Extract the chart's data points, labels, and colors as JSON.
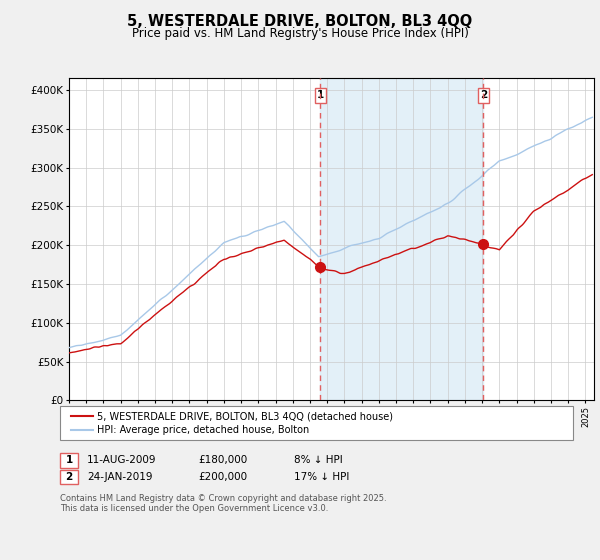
{
  "title": "5, WESTERDALE DRIVE, BOLTON, BL3 4QQ",
  "subtitle": "Price paid vs. HM Land Registry's House Price Index (HPI)",
  "ylabel_ticks": [
    "£0",
    "£50K",
    "£100K",
    "£150K",
    "£200K",
    "£250K",
    "£300K",
    "£350K",
    "£400K"
  ],
  "ytick_values": [
    0,
    50000,
    100000,
    150000,
    200000,
    250000,
    300000,
    350000,
    400000
  ],
  "ylim": [
    0,
    415000
  ],
  "xlim_start": 1995.0,
  "xlim_end": 2025.5,
  "hpi_color": "#a8c8e8",
  "hpi_fill_color": "#d8eaf6",
  "price_color": "#cc1111",
  "vline_color": "#e06060",
  "vline1_x": 2009.6,
  "vline2_x": 2019.07,
  "sale1_price": 180000,
  "sale2_price": 200000,
  "annotation1_label": "1",
  "annotation2_label": "2",
  "legend_line1": "5, WESTERDALE DRIVE, BOLTON, BL3 4QQ (detached house)",
  "legend_line2": "HPI: Average price, detached house, Bolton",
  "footnote": "Contains HM Land Registry data © Crown copyright and database right 2025.\nThis data is licensed under the Open Government Licence v3.0.",
  "table_row1": [
    "1",
    "11-AUG-2009",
    "£180,000",
    "8% ↓ HPI"
  ],
  "table_row2": [
    "2",
    "24-JAN-2019",
    "£200,000",
    "17% ↓ HPI"
  ],
  "background_color": "#f0f0f0"
}
